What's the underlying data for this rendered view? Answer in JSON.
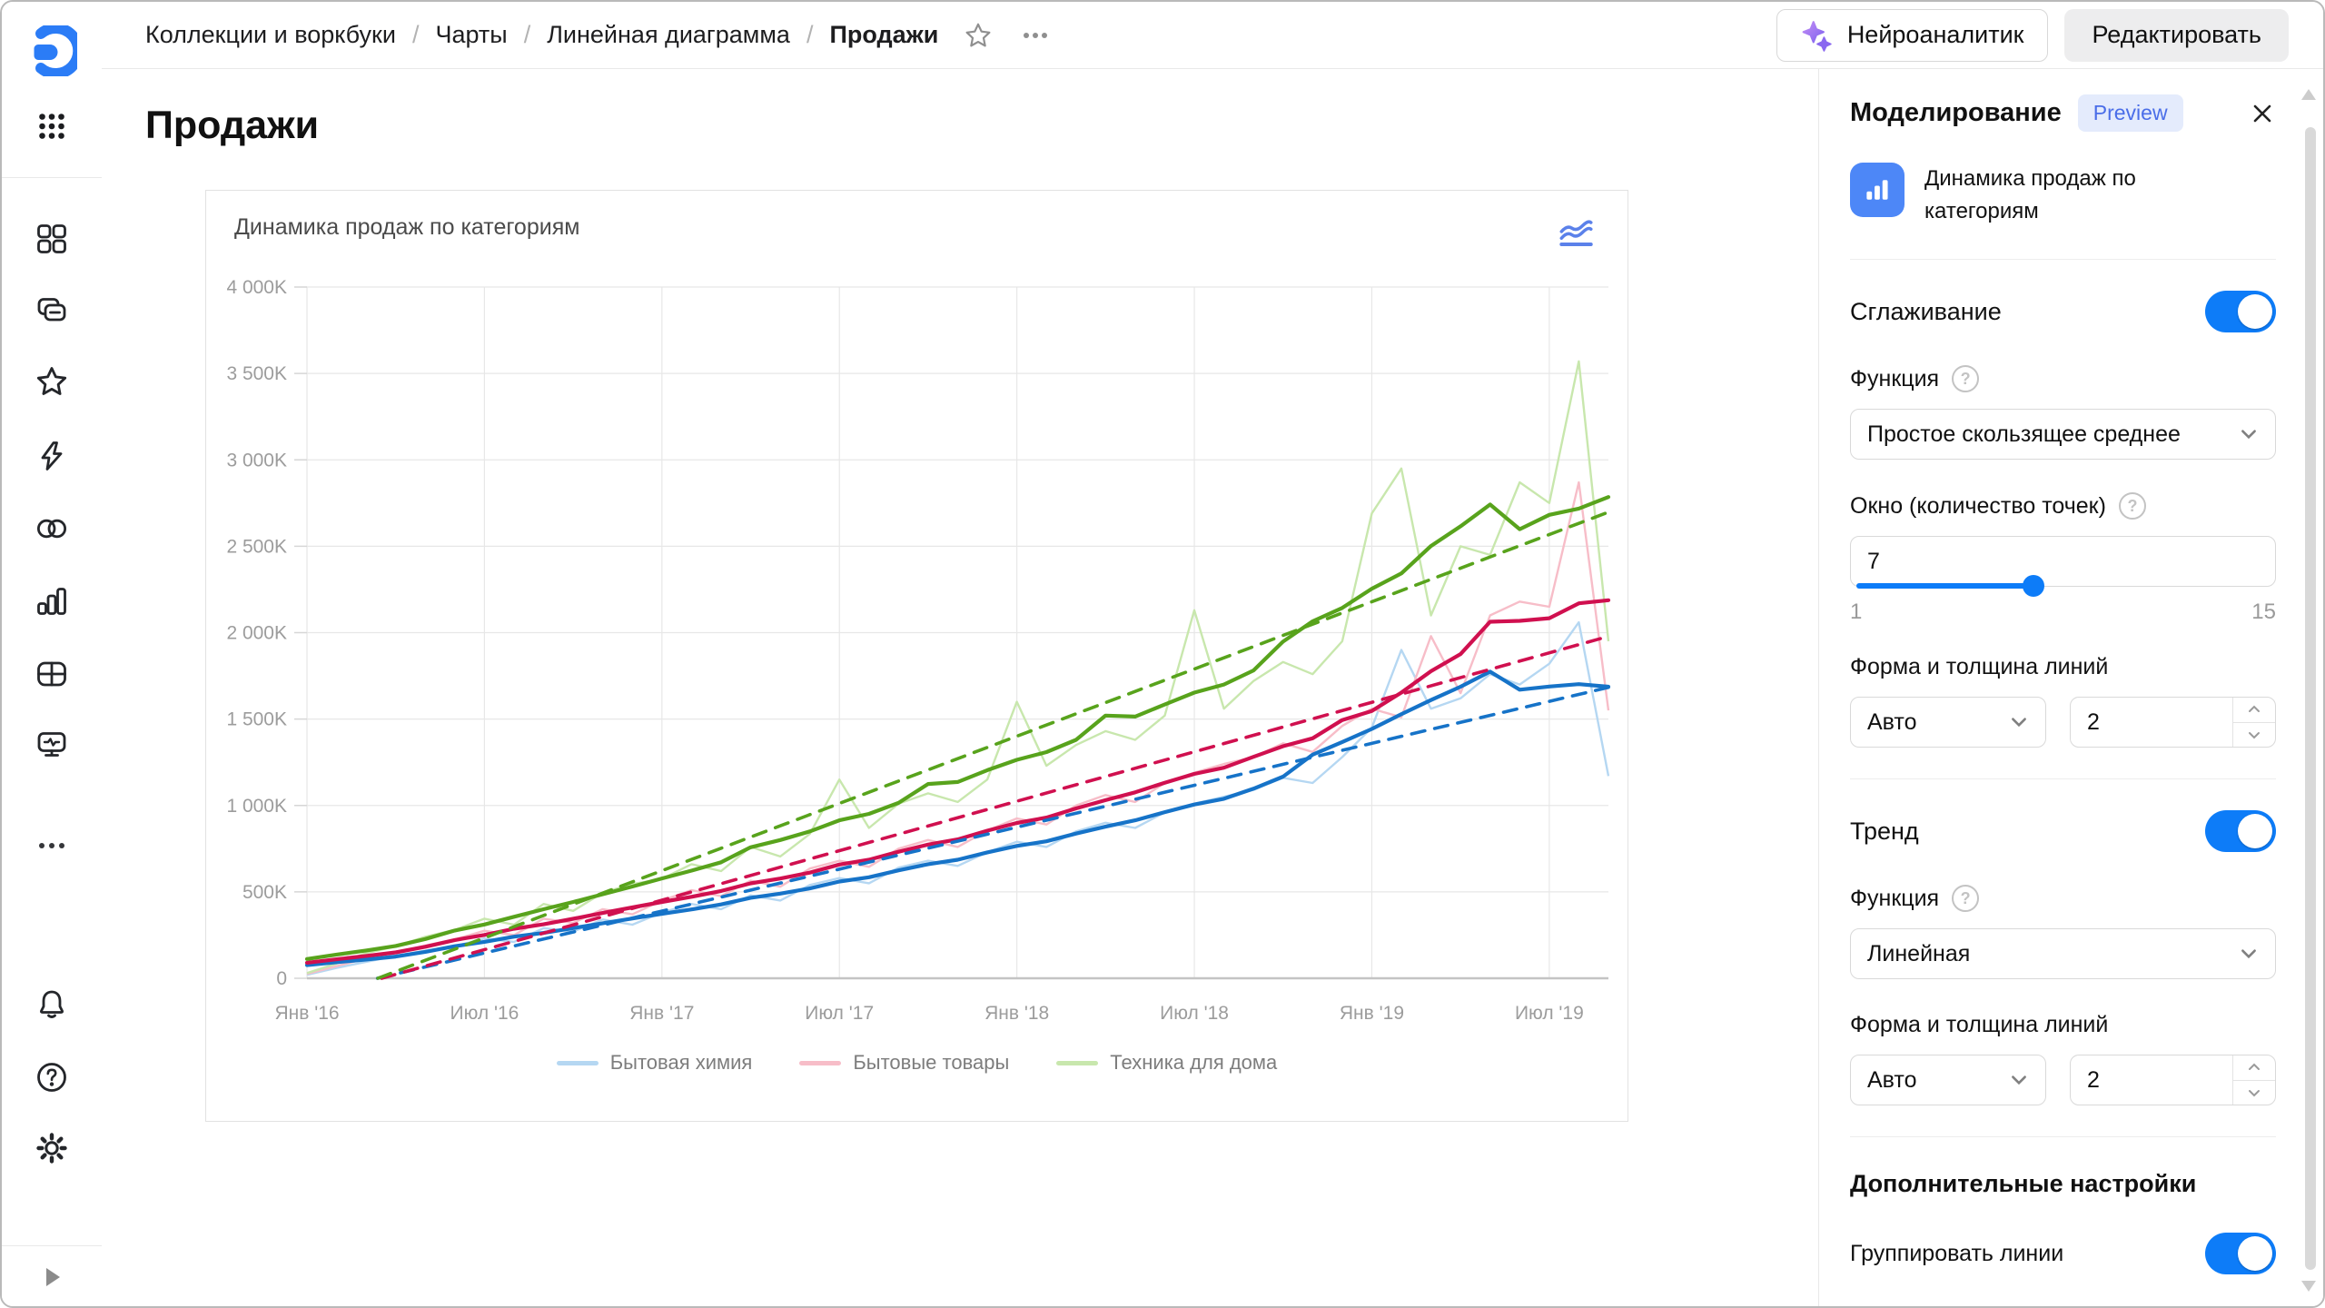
{
  "theme": {
    "accent": "#0d7cf8",
    "badge_bg": "#e4ebfc",
    "badge_text": "#4a6de8"
  },
  "header": {
    "breadcrumbs": [
      {
        "label": "Коллекции и воркбуки"
      },
      {
        "label": "Чарты"
      },
      {
        "label": "Линейная диаграмма"
      },
      {
        "label": "Продажи"
      }
    ],
    "separator": "/",
    "neuro_button": {
      "label": "Нейроаналитик"
    },
    "edit_button": {
      "label": "Редактировать"
    }
  },
  "sidebar": {
    "items": [
      "logo",
      "apps",
      "dashboards",
      "collections",
      "favorites",
      "quick",
      "connections",
      "charts",
      "tables",
      "monitoring",
      "more",
      "notifications",
      "help",
      "settings",
      "expand"
    ]
  },
  "main": {
    "page_title": "Продажи",
    "card_title": "Динамика продаж по категориям"
  },
  "chart_data": {
    "type": "line",
    "title": "Динамика продаж по категориям",
    "x_tick_labels": [
      "Янв '16",
      "Июл '16",
      "Янв '17",
      "Июл '17",
      "Янв '18",
      "Июл '18",
      "Янв '19",
      "Июл '19"
    ],
    "x_tick_indices": [
      0,
      6,
      12,
      18,
      24,
      30,
      36,
      42
    ],
    "y_ticks": [
      0,
      500,
      1000,
      1500,
      2000,
      2500,
      3000,
      3500,
      4000
    ],
    "y_tick_labels": [
      "0",
      "500K",
      "1 000K",
      "1 500K",
      "2 000K",
      "2 500K",
      "3 000K",
      "3 500K",
      "4 000K"
    ],
    "ylim": [
      0,
      4000
    ],
    "unit": "K",
    "grid": true,
    "legend_position": "bottom",
    "smoothing": {
      "type": "simple_moving_average",
      "window": 7
    },
    "trend": {
      "type": "linear"
    },
    "series": [
      {
        "name": "Бытовая химия",
        "color": "#1673c8",
        "raw_color": "#b5d7f2",
        "values": [
          20,
          60,
          95,
          130,
          160,
          185,
          230,
          210,
          290,
          270,
          340,
          310,
          380,
          430,
          400,
          480,
          450,
          540,
          580,
          550,
          640,
          680,
          650,
          730,
          790,
          760,
          850,
          900,
          870,
          960,
          1010,
          1050,
          1090,
          1160,
          1130,
          1280,
          1450,
          1900,
          1560,
          1620,
          1760,
          1700,
          1820,
          2060,
          1170
        ]
      },
      {
        "name": "Бытовые товары",
        "color": "#d0104f",
        "raw_color": "#f7bdc8",
        "values": [
          25,
          70,
          115,
          150,
          190,
          225,
          275,
          250,
          345,
          320,
          400,
          370,
          450,
          510,
          475,
          565,
          530,
          635,
          680,
          645,
          750,
          800,
          760,
          855,
          925,
          890,
          1000,
          1060,
          1020,
          1130,
          1190,
          1240,
          1280,
          1360,
          1310,
          1460,
          1560,
          1510,
          1980,
          1650,
          2100,
          2180,
          2150,
          2870,
          1550
        ]
      },
      {
        "name": "Техника для дома",
        "color": "#58a31c",
        "raw_color": "#c8e7ad",
        "values": [
          30,
          85,
          145,
          185,
          240,
          280,
          345,
          310,
          430,
          390,
          495,
          545,
          575,
          660,
          620,
          760,
          705,
          835,
          1150,
          870,
          1010,
          1070,
          1020,
          1150,
          1600,
          1230,
          1350,
          1430,
          1380,
          1520,
          2130,
          1560,
          1720,
          1830,
          1760,
          1950,
          2690,
          2950,
          2100,
          2500,
          2450,
          2870,
          2750,
          3570,
          1950
        ]
      }
    ]
  },
  "panel": {
    "title": "Моделирование",
    "badge": "Preview",
    "chart_ref": "Динамика продаж по категориям",
    "smoothing": {
      "label": "Сглаживание",
      "enabled": true,
      "function_label": "Функция",
      "function_value": "Простое скользящее среднее",
      "window_label": "Окно (количество точек)",
      "window_value": "7",
      "window_min": "1",
      "window_max": "15",
      "line_label": "Форма и толщина линий",
      "shape_value": "Авто",
      "thickness_value": "2"
    },
    "trend": {
      "label": "Тренд",
      "enabled": true,
      "function_label": "Функция",
      "function_value": "Линейная",
      "line_label": "Форма и толщина линий",
      "shape_value": "Авто",
      "thickness_value": "2"
    },
    "additional": {
      "title": "Дополнительные настройки",
      "group_label": "Группировать линии",
      "enabled": true
    }
  }
}
